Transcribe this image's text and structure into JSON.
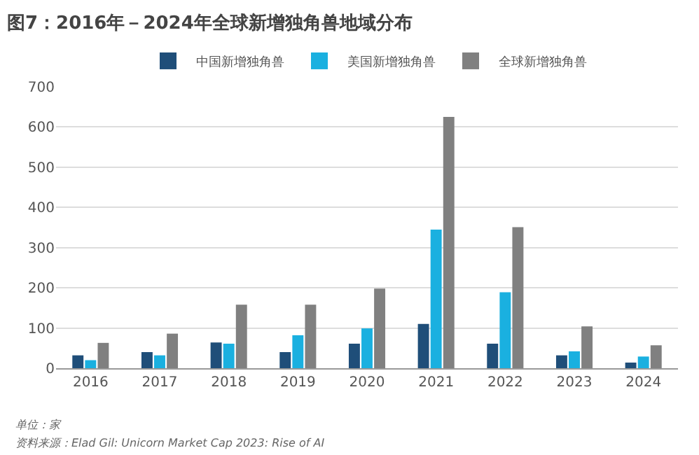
{
  "chart_data": {
    "type": "bar",
    "title": "图7：2016年－2024年全球新增独角兽地域分布",
    "categories": [
      "2016",
      "2017",
      "2018",
      "2019",
      "2020",
      "2021",
      "2022",
      "2023",
      "2024"
    ],
    "series": [
      {
        "name": "中国新增独角兽",
        "color": "#1f4e79",
        "values": [
          32,
          40,
          64,
          40,
          61,
          110,
          61,
          32,
          14
        ]
      },
      {
        "name": "美国新增独角兽",
        "color": "#1ab0e0",
        "values": [
          20,
          32,
          61,
          82,
          99,
          345,
          189,
          42,
          29
        ]
      },
      {
        "name": "全球新增独角兽",
        "color": "#808080",
        "values": [
          63,
          86,
          158,
          158,
          198,
          625,
          351,
          104,
          57
        ]
      }
    ],
    "ylim": [
      0,
      700
    ],
    "yticks": [
      0,
      100,
      200,
      300,
      400,
      500,
      600,
      700
    ],
    "grid": "y",
    "legend": "top",
    "annotations": [
      "单位：家",
      "资料来源：Elad Gil: Unicorn Market Cap 2023: Rise of AI"
    ]
  }
}
